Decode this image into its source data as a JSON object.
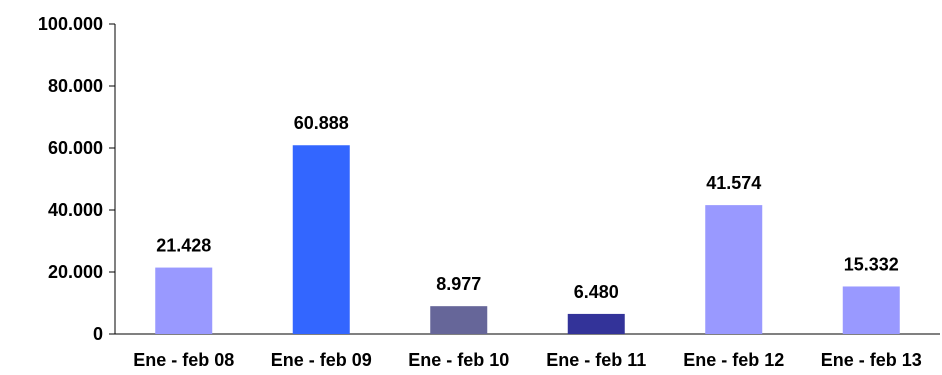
{
  "chart_data": {
    "type": "bar",
    "categories": [
      "Ene - feb 08",
      "Ene - feb 09",
      "Ene - feb 10",
      "Ene - feb 11",
      "Ene - feb 12",
      "Ene - feb 13"
    ],
    "values": [
      21428,
      60888,
      8977,
      6480,
      41574,
      15332
    ],
    "value_labels": [
      "21.428",
      "60.888",
      "8.977",
      "6.480",
      "41.574",
      "15.332"
    ],
    "bar_colors": [
      "#9999ff",
      "#3366ff",
      "#666699",
      "#333399",
      "#9999ff",
      "#9999ff"
    ],
    "ylim": [
      0,
      100000
    ],
    "yticks": [
      0,
      20000,
      40000,
      60000,
      80000,
      100000
    ],
    "ytick_labels": [
      "0",
      "20.000",
      "40.000",
      "60.000",
      "80.000",
      "100.000"
    ],
    "grid": false,
    "legend": "none",
    "title": "",
    "xlabel": "",
    "ylabel": ""
  }
}
